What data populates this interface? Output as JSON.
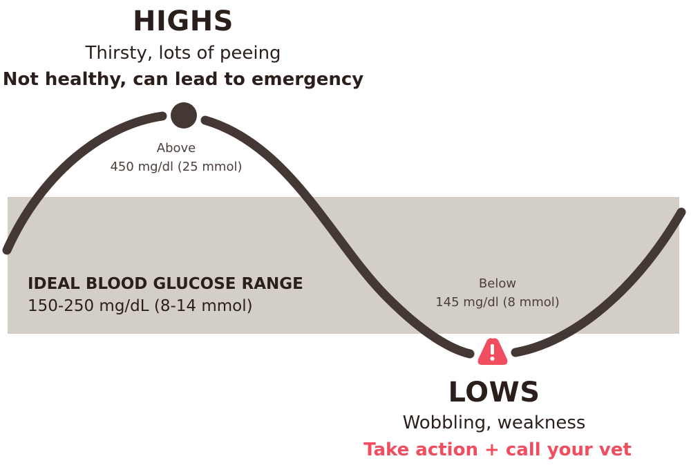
{
  "highs": {
    "title": "HIGHS",
    "symptoms": "Thirsty, lots of peeing",
    "warning": "Not healthy, can lead to emergency",
    "threshold_label": "Above",
    "threshold_value": "450 mg/dl (25 mmol)"
  },
  "ideal": {
    "title": "IDEAL BLOOD GLUCOSE RANGE",
    "value": "150-250 mg/dL (8-14 mmol)"
  },
  "lows": {
    "title": "LOWS",
    "symptoms": "Wobbling, weakness",
    "warning": "Take action + call your vet",
    "threshold_label": "Below",
    "threshold_value": "145 mg/dl (8 mmol)"
  },
  "colors": {
    "curve": "#443834",
    "band": "#d3cec8",
    "text": "#2b1f1c",
    "alert": "#f04e5e"
  },
  "icons": {
    "peak_marker": "filled-circle",
    "trough_marker": "warning-triangle-icon"
  }
}
